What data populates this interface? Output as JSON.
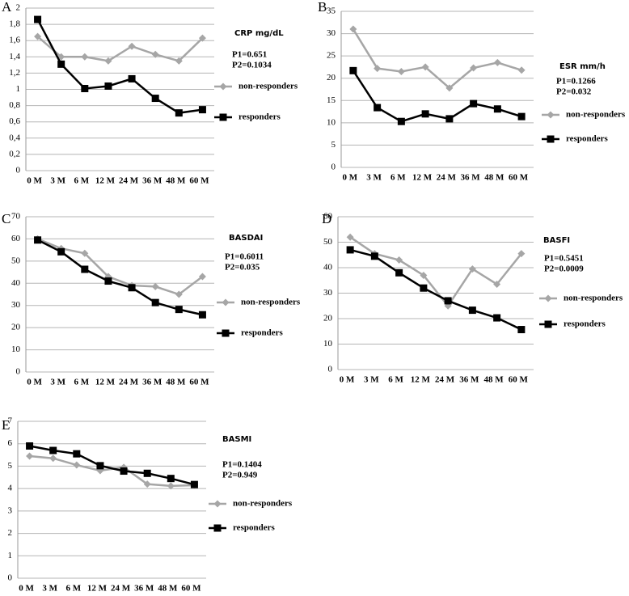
{
  "chart_data": [
    {
      "type": "line",
      "panel_label": "A",
      "title": "CRP mg/dL",
      "annotations": [
        "P1=0.651",
        "P2=0.1034"
      ],
      "categories": [
        "0 M",
        "3 M",
        "6 M",
        "12 M",
        "24 M",
        "36 M",
        "48 M",
        "60 M"
      ],
      "series": [
        {
          "name": "non-responders",
          "color": "#a6a6a6",
          "marker": "diamond",
          "values": [
            1.65,
            1.4,
            1.4,
            1.35,
            1.53,
            1.43,
            1.35,
            1.63
          ]
        },
        {
          "name": "responders",
          "color": "#000000",
          "marker": "square",
          "values": [
            1.86,
            1.31,
            1.01,
            1.04,
            1.13,
            0.89,
            0.71,
            0.75
          ]
        }
      ],
      "ylim": [
        0,
        2
      ],
      "yticks": [
        0,
        {
          "value": 0.2,
          "label": "0,2"
        },
        {
          "value": 0.4,
          "label": "0,4"
        },
        {
          "value": 0.6,
          "label": "0,6"
        },
        {
          "value": 0.8,
          "label": "0,8"
        },
        1,
        {
          "value": 1.2,
          "label": "1,2"
        },
        {
          "value": 1.4,
          "label": "1,4"
        },
        {
          "value": 1.6,
          "label": "1,6"
        },
        {
          "value": 1.8,
          "label": "1,8"
        },
        2
      ],
      "grid": true
    },
    {
      "type": "line",
      "panel_label": "B",
      "title": "ESR mm/h",
      "annotations": [
        "P1=0.1266",
        "P2=0.032"
      ],
      "categories": [
        "0 M",
        "3 M",
        "6 M",
        "12 M",
        "24 M",
        "36 M",
        "48 M",
        "60 M"
      ],
      "series": [
        {
          "name": "non-responders",
          "color": "#a6a6a6",
          "marker": "diamond",
          "values": [
            31,
            22.2,
            21.5,
            22.5,
            17.8,
            22.3,
            23.5,
            21.8
          ]
        },
        {
          "name": "responders",
          "color": "#000000",
          "marker": "square",
          "values": [
            21.7,
            13.4,
            10.3,
            12,
            10.9,
            14.3,
            13.1,
            11.4
          ]
        }
      ],
      "ylim": [
        0,
        35
      ],
      "yticks": [
        0,
        5,
        10,
        15,
        20,
        25,
        30,
        35
      ],
      "grid": true
    },
    {
      "type": "line",
      "panel_label": "C",
      "title": "BASDAI",
      "annotations": [
        "P1=0.6011",
        "P2=0.035"
      ],
      "categories": [
        "0 M",
        "3 M",
        "6 M",
        "12 M",
        "24 M",
        "36 M",
        "48 M",
        "60 M"
      ],
      "series": [
        {
          "name": "non-responders",
          "color": "#a6a6a6",
          "marker": "diamond",
          "values": [
            60,
            55.7,
            53.5,
            43,
            39,
            38.5,
            35,
            43
          ]
        },
        {
          "name": "responders",
          "color": "#000000",
          "marker": "square",
          "values": [
            59.5,
            54.2,
            46.3,
            41,
            38,
            31.3,
            28.2,
            25.8
          ]
        }
      ],
      "ylim": [
        0,
        70
      ],
      "yticks": [
        0,
        10,
        20,
        30,
        40,
        50,
        60,
        70
      ],
      "grid": true
    },
    {
      "type": "line",
      "panel_label": "D",
      "title": "BASFI",
      "annotations": [
        "P1=0.5451",
        "P2=0.0009"
      ],
      "categories": [
        "0 M",
        "3 M",
        "6 M",
        "12 M",
        "24 M",
        "36 M",
        "48 M",
        "60 M"
      ],
      "series": [
        {
          "name": "non-responders",
          "color": "#a6a6a6",
          "marker": "diamond",
          "values": [
            52,
            45.5,
            43,
            37,
            25,
            39.5,
            33.5,
            45.5
          ]
        },
        {
          "name": "responders",
          "color": "#000000",
          "marker": "square",
          "values": [
            47,
            44.5,
            38,
            32,
            27,
            23.3,
            20.3,
            15.7
          ]
        }
      ],
      "ylim": [
        0,
        60
      ],
      "yticks": [
        0,
        10,
        20,
        30,
        40,
        50,
        60
      ],
      "grid": true
    },
    {
      "type": "line",
      "panel_label": "E",
      "title": "BASMI",
      "annotations": [
        "P1=0.1404",
        "P2=0.949"
      ],
      "categories": [
        "0 M",
        "3 M",
        "6 M",
        "12 M",
        "24 M",
        "36 M",
        "48 M",
        "60 M"
      ],
      "series": [
        {
          "name": "non-responders",
          "color": "#a6a6a6",
          "marker": "diamond",
          "values": [
            5.45,
            5.35,
            5.05,
            4.8,
            4.95,
            4.2,
            4.12,
            4.15
          ]
        },
        {
          "name": "responders",
          "color": "#000000",
          "marker": "square",
          "values": [
            5.9,
            5.7,
            5.55,
            5.02,
            4.78,
            4.68,
            4.45,
            4.18
          ]
        }
      ],
      "ylim": [
        0,
        7
      ],
      "yticks": [
        0,
        1,
        2,
        3,
        4,
        5,
        6,
        7
      ],
      "grid": true
    }
  ]
}
